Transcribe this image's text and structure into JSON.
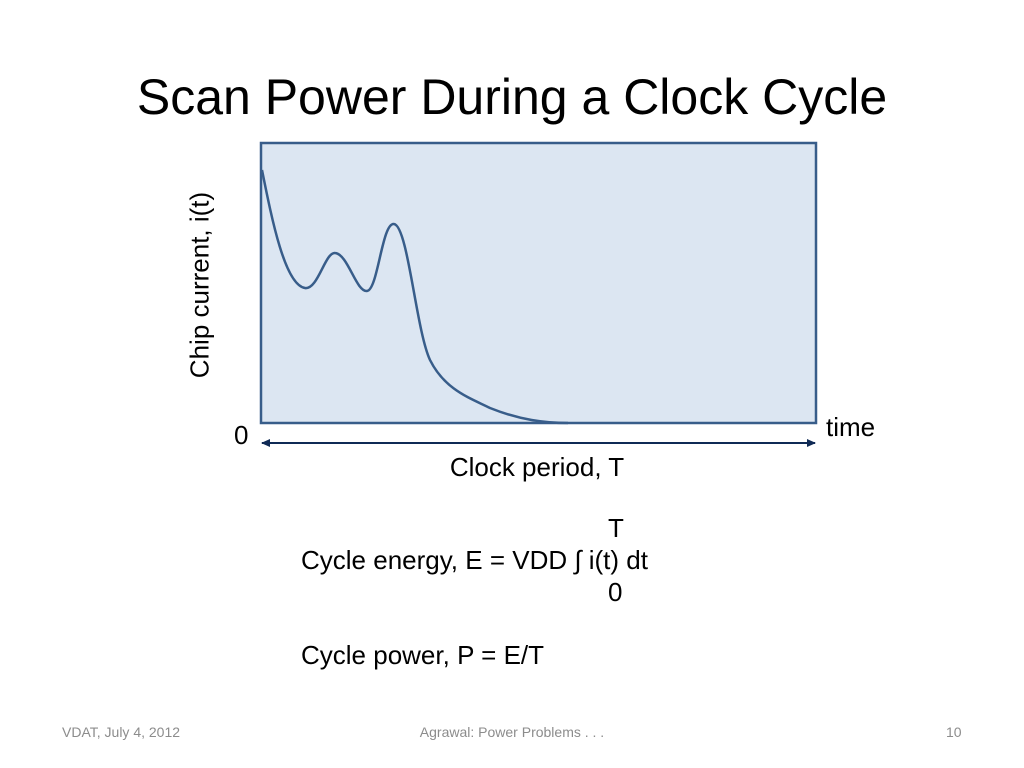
{
  "slide": {
    "title": "Scan Power During a Clock Cycle",
    "footer": {
      "left": "VDAT, July 4, 2012",
      "center": "Agrawal: Power Problems . . .",
      "right": "10"
    }
  },
  "diagram": {
    "y_axis_label": "Chip current, i(t)",
    "origin_label": "0",
    "x_axis_label": "time",
    "period_label": "Clock period, T",
    "box_fill": "#dce6f2",
    "line_color": "#385d8a",
    "arrow_color": "#0f2a55"
  },
  "equations": {
    "energy_upper_limit": "T",
    "energy": "Cycle energy, E = VDD ∫ i(t) dt",
    "energy_lower_limit": "0",
    "power": "Cycle power, P = E/T"
  }
}
